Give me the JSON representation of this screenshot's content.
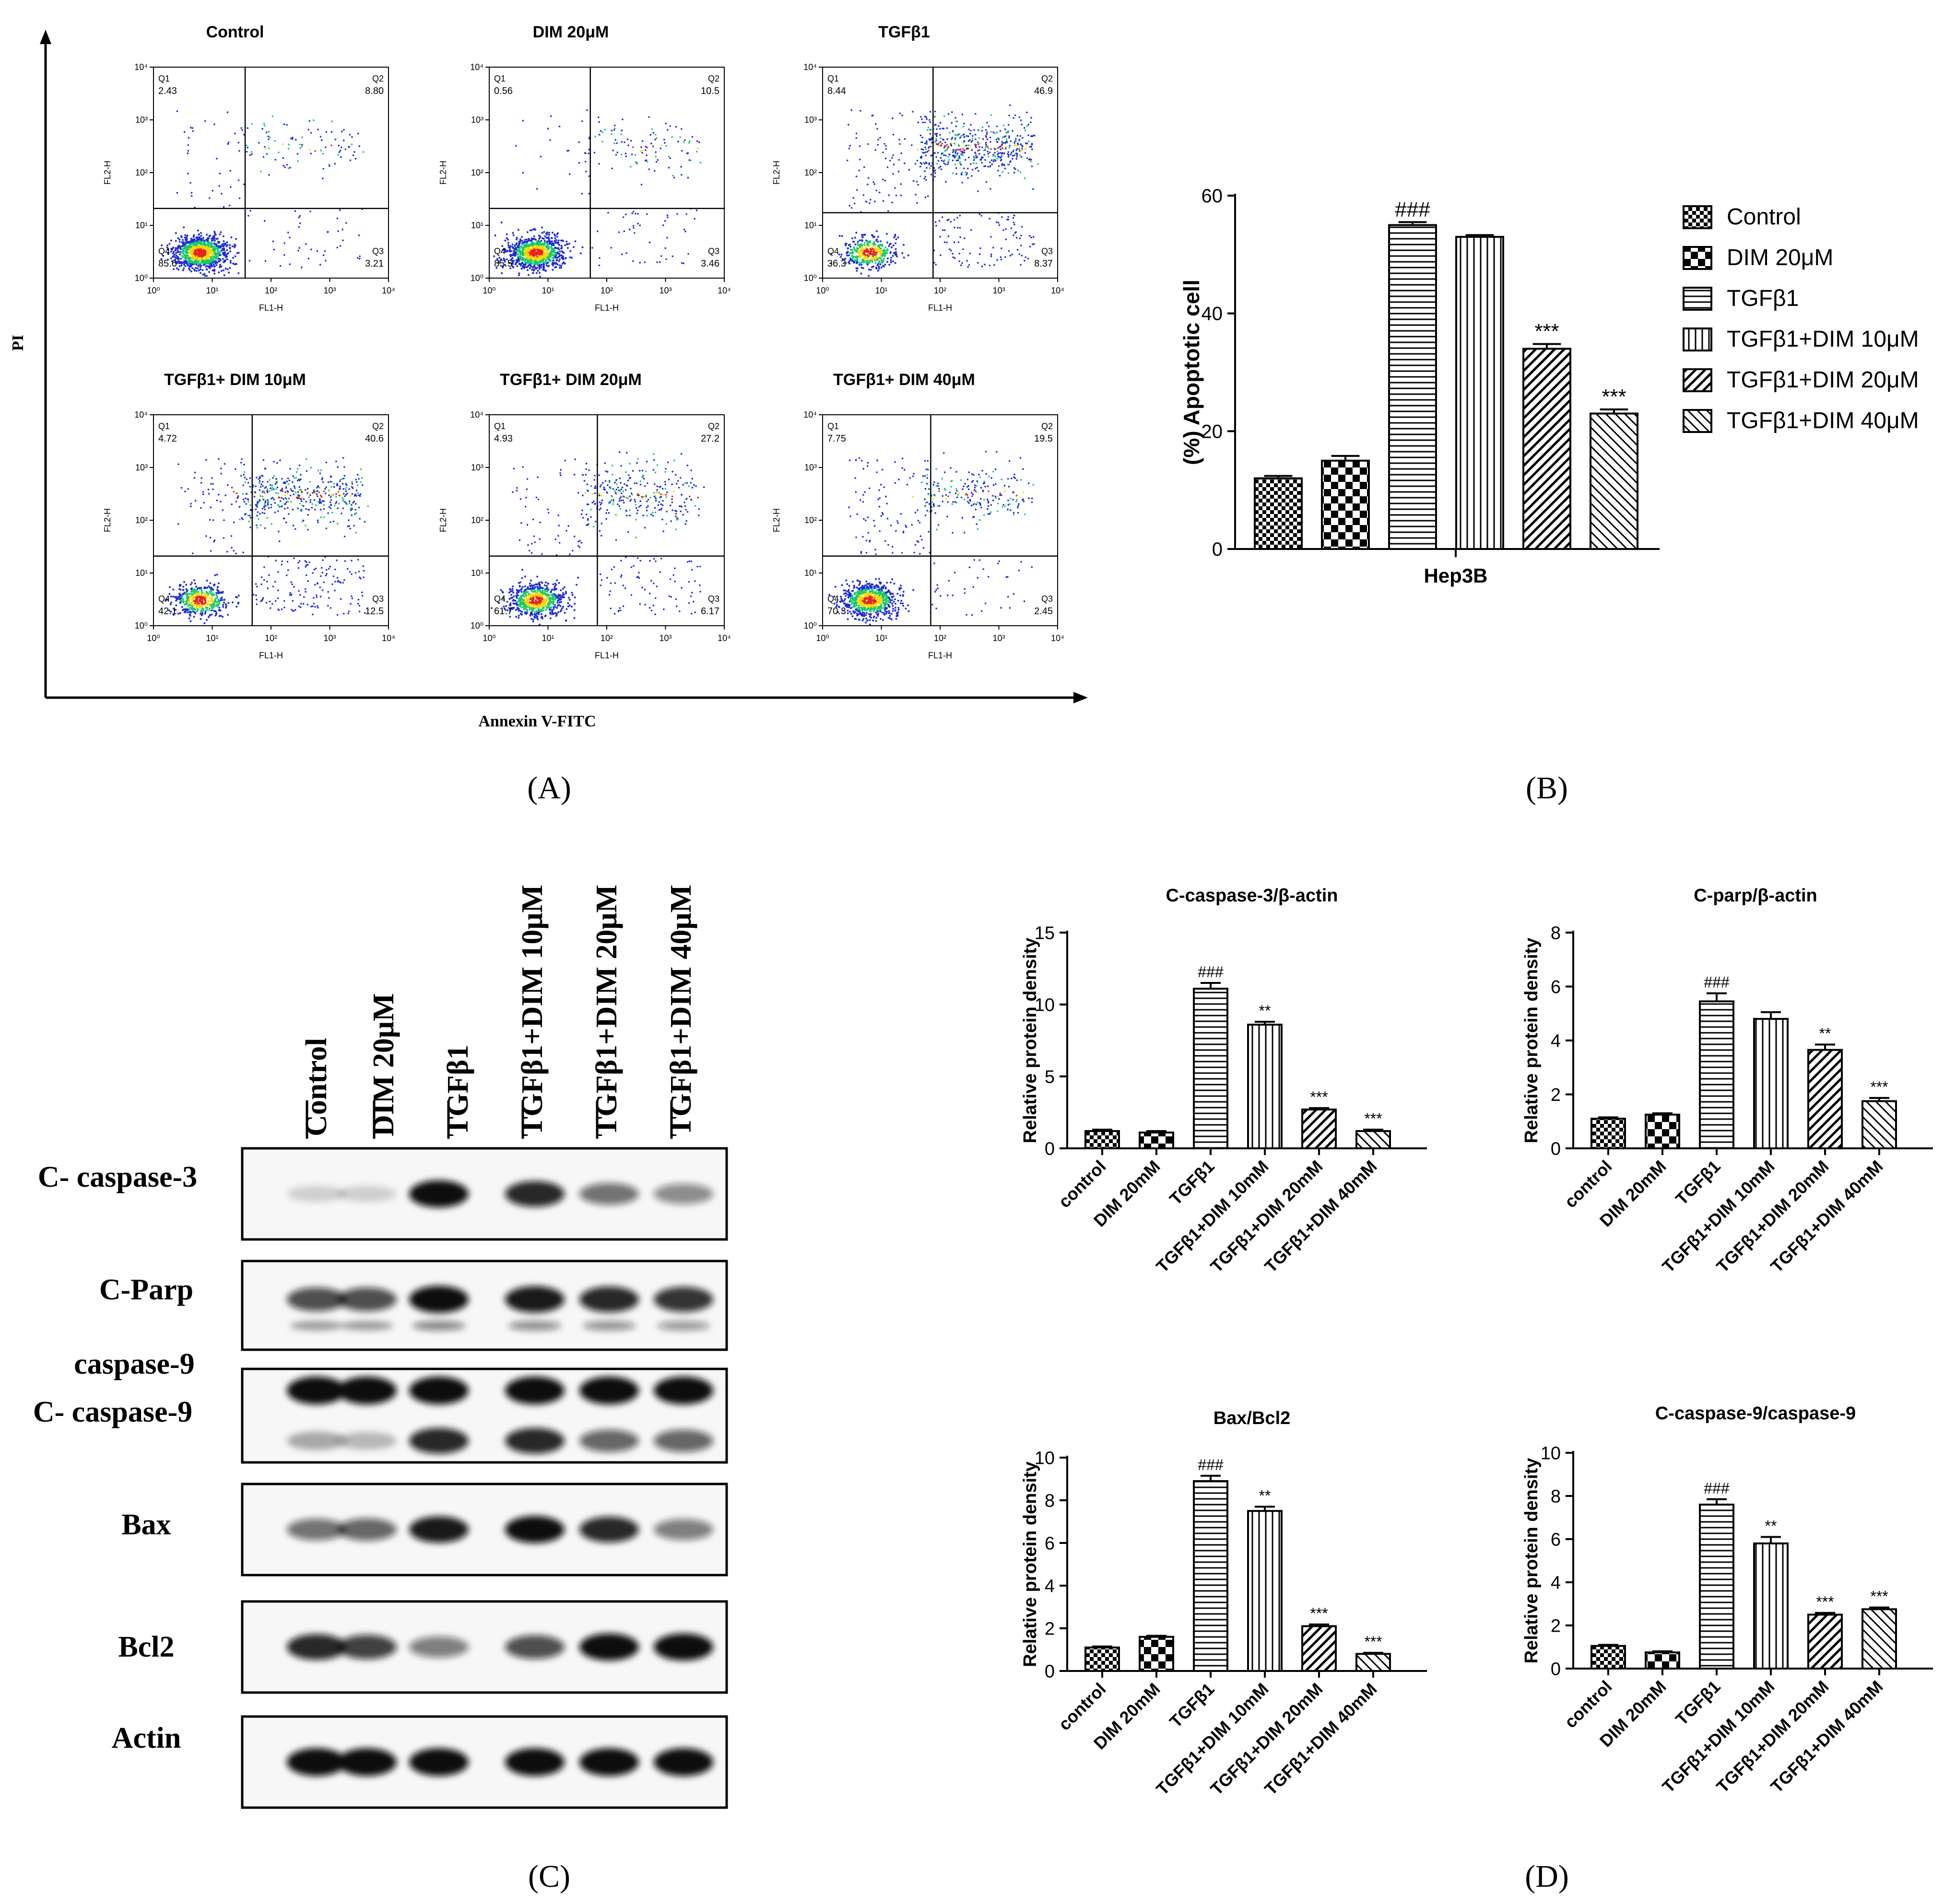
{
  "panel_labels": [
    "(A)",
    "(B)",
    "(C)",
    "(D)"
  ],
  "colors": {
    "axis": "#000000",
    "bar_fill": "#ffffff",
    "hatch": "#000000",
    "dot_low": "#1f2bd6",
    "dot_mid": "#17c96b",
    "dot_high": "#ffd600",
    "dot_peak": "#e8231a",
    "band": "#111111"
  },
  "panelA": {
    "x_axis_label": "Annexin V-FITC",
    "y_axis_label": "PI",
    "plot_xlabel": "FL1-H",
    "plot_ylabel": "FL2-H",
    "tick_labels": [
      "10⁰",
      "10¹",
      "10²",
      "10³",
      "10⁴"
    ],
    "plots": [
      {
        "title": "Control",
        "q1": "2.43",
        "q2": "8.80",
        "q3": "3.21",
        "q4": "85.6"
      },
      {
        "title": "DIM 20μM",
        "q1": "0.56",
        "q2": "10.5",
        "q3": "3.46",
        "q4": "85.5"
      },
      {
        "title": "TGFβ1",
        "q1": "8.44",
        "q2": "46.9",
        "q3": "8.37",
        "q4": "36.3"
      },
      {
        "title": "TGFβ1+ DIM 10μM",
        "q1": "4.72",
        "q2": "40.6",
        "q3": "12.5",
        "q4": "42.1"
      },
      {
        "title": "TGFβ1+ DIM 20μM",
        "q1": "4.93",
        "q2": "27.2",
        "q3": "6.17",
        "q4": "61.7"
      },
      {
        "title": "TGFβ1+ DIM 40μM",
        "q1": "7.75",
        "q2": "19.5",
        "q3": "2.45",
        "q4": "70.3"
      }
    ]
  },
  "panelC": {
    "lanes": [
      "Control",
      "DIM 20μM",
      "TGFβ1",
      "TGFβ1+DIM 10μM",
      "TGFβ1+DIM 20μM",
      "TGFβ1+DIM 40μM"
    ],
    "blots": [
      {
        "label": "C- caspase-3",
        "intensity": [
          0.15,
          0.15,
          0.95,
          0.85,
          0.55,
          0.45
        ]
      },
      {
        "label": "C-Parp",
        "intensity": [
          0.7,
          0.7,
          0.95,
          0.9,
          0.85,
          0.8
        ]
      },
      {
        "label": "caspase-9",
        "intensity": [
          1,
          1,
          1,
          1,
          1,
          1
        ]
      },
      {
        "label": "C- caspase-9",
        "intensity": [
          0.3,
          0.25,
          0.85,
          0.85,
          0.6,
          0.6
        ]
      },
      {
        "label": "Bax",
        "intensity": [
          0.55,
          0.6,
          0.9,
          0.95,
          0.85,
          0.5
        ]
      },
      {
        "label": "Bcl2",
        "intensity": [
          0.85,
          0.75,
          0.5,
          0.7,
          0.95,
          0.95
        ]
      },
      {
        "label": "Actin",
        "intensity": [
          1,
          1,
          1,
          1,
          1,
          1
        ]
      }
    ]
  },
  "chart_data": [
    {
      "type": "bar",
      "title": "",
      "xlabel": "Hep3B",
      "ylabel": "(%) Apoptotic cell",
      "ylim": [
        0,
        60
      ],
      "yticks": [
        0,
        20,
        40,
        60
      ],
      "categories": [
        "Control",
        "DIM 20μM",
        "TGFβ1",
        "TGFβ1+DIM 10μM",
        "TGFβ1+DIM 20μM",
        "TGFβ1+DIM 40μM"
      ],
      "values": [
        12,
        15,
        55,
        53,
        34,
        23
      ],
      "errors": [
        0.4,
        0.8,
        0.5,
        0.3,
        0.8,
        0.7
      ],
      "annotations": [
        "",
        "",
        "###",
        "",
        "***",
        "***"
      ],
      "legend": [
        "Control",
        "DIM 20μM",
        "TGFβ1",
        "TGFβ1+DIM 10μM",
        "TGFβ1+DIM 20μM",
        "TGFβ1+DIM 40μM"
      ],
      "legend_position": "right"
    },
    {
      "type": "bar",
      "title": "C-caspase-3/β-actin",
      "ylabel": "Relative protein density",
      "ylim": [
        0,
        15
      ],
      "yticks": [
        0,
        5,
        10,
        15
      ],
      "categories": [
        "control",
        "DIM 20mM",
        "TGFβ1",
        "TGFβ1+DIM 10mM",
        "TGFβ1+DIM 20mM",
        "TGFβ1+DIM 40mM"
      ],
      "values": [
        1.2,
        1.1,
        11.1,
        8.6,
        2.7,
        1.2
      ],
      "errors": [
        0.1,
        0.1,
        0.4,
        0.2,
        0.1,
        0.1
      ],
      "annotations": [
        "",
        "",
        "###",
        "**",
        "***",
        "***"
      ]
    },
    {
      "type": "bar",
      "title": "C-parp/β-actin",
      "ylabel": "Relative protein density",
      "ylim": [
        0,
        8
      ],
      "yticks": [
        0,
        2,
        4,
        6,
        8
      ],
      "categories": [
        "control",
        "DIM 20mM",
        "TGFβ1",
        "TGFβ1+DIM 10mM",
        "TGFβ1+DIM 20mM",
        "TGFβ1+DIM 40mM"
      ],
      "values": [
        1.1,
        1.25,
        5.45,
        4.8,
        3.65,
        1.75
      ],
      "errors": [
        0.05,
        0.05,
        0.3,
        0.25,
        0.2,
        0.12
      ],
      "annotations": [
        "",
        "",
        "###",
        "",
        "**",
        "***"
      ]
    },
    {
      "type": "bar",
      "title": "Bax/Bcl2",
      "ylabel": "Relative protein density",
      "ylim": [
        0,
        10
      ],
      "yticks": [
        0,
        2,
        4,
        6,
        8,
        10
      ],
      "categories": [
        "control",
        "DIM 20mM",
        "TGFβ1",
        "TGFβ1+DIM 10mM",
        "TGFβ1+DIM 20mM",
        "TGFβ1+DIM 40mM"
      ],
      "values": [
        1.1,
        1.6,
        8.9,
        7.5,
        2.1,
        0.8
      ],
      "errors": [
        0.05,
        0.05,
        0.25,
        0.2,
        0.08,
        0.05
      ],
      "annotations": [
        "",
        "",
        "###",
        "**",
        "***",
        "***"
      ]
    },
    {
      "type": "bar",
      "title": "C-caspase-9/caspase-9",
      "ylabel": "Relative protein density",
      "ylim": [
        0,
        10
      ],
      "yticks": [
        0,
        2,
        4,
        6,
        8,
        10
      ],
      "categories": [
        "control",
        "DIM 20mM",
        "TGFβ1",
        "TGFβ1+DIM 10mM",
        "TGFβ1+DIM 20mM",
        "TGFβ1+DIM 40mM"
      ],
      "values": [
        1.05,
        0.75,
        7.6,
        5.8,
        2.5,
        2.75
      ],
      "errors": [
        0.05,
        0.05,
        0.25,
        0.3,
        0.08,
        0.08
      ],
      "annotations": [
        "",
        "",
        "###",
        "**",
        "***",
        "***"
      ]
    }
  ]
}
